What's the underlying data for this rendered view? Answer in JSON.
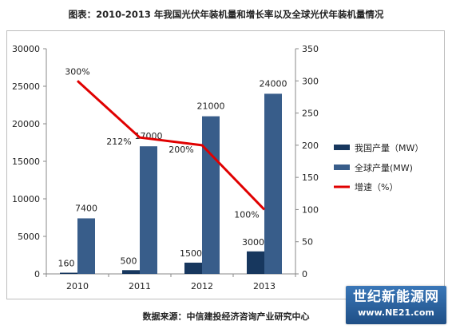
{
  "title": "图表：2010-2013 年我国光伏年装机量和增长率以及全球光伏年装机量情况",
  "source": "数据来源：中信建投经济咨询产业研究中心",
  "watermark": {
    "line1": "世纪新能源网",
    "line2": "www.NE21.com"
  },
  "chart_data": {
    "type": "bar",
    "categories": [
      "2010",
      "2011",
      "2012",
      "2013"
    ],
    "series": [
      {
        "name": "我国产量（MW）",
        "type": "bar",
        "axis": "left",
        "color": "#17375e",
        "values": [
          160,
          500,
          1500,
          3000
        ],
        "labels": [
          "160",
          "500",
          "1500",
          "3000"
        ]
      },
      {
        "name": "全球产量(MW)",
        "type": "bar",
        "axis": "left",
        "color": "#385d8a",
        "values": [
          7400,
          17000,
          21000,
          24000
        ],
        "labels": [
          "7400",
          "17000",
          "21000",
          "24000"
        ]
      },
      {
        "name": "增速（%）",
        "type": "line",
        "axis": "right",
        "color": "#e00000",
        "values": [
          300,
          212,
          200,
          100
        ],
        "labels": [
          "300%",
          "212%",
          "200%",
          "100%"
        ]
      }
    ],
    "y_left": {
      "min": 0,
      "max": 30000,
      "ticks": [
        "0",
        "5000",
        "10000",
        "15000",
        "20000",
        "25000",
        "30000"
      ]
    },
    "y_right": {
      "min": 0,
      "max": 350,
      "ticks": [
        "0",
        "50",
        "100",
        "150",
        "200",
        "250",
        "300",
        "350"
      ]
    },
    "grid": false,
    "legend_position": "right"
  }
}
